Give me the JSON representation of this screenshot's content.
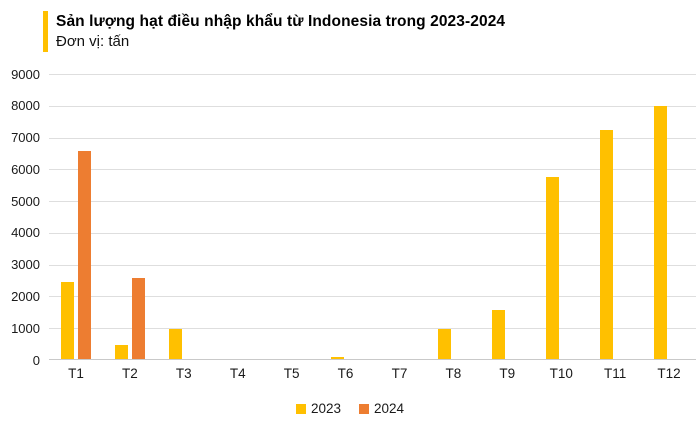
{
  "header": {
    "title": "Sản lượng hạt điều nhập khẩu từ Indonesia trong 2023-2024",
    "subtitle": "Đơn vị: tấn"
  },
  "colors": {
    "series_2023": "#FFC000",
    "series_2024": "#ED7D31",
    "title_accent": "#FFC000",
    "gridline": "#DEDEDE",
    "axis_line": "#C9C9C9",
    "label_text": "#1A1A1A"
  },
  "chart_data": {
    "type": "bar",
    "title": "Sản lượng hạt điều nhập khẩu từ Indonesia trong 2023-2024",
    "subtitle": "Đơn vị: tấn",
    "unit": "tấn",
    "categories": [
      "T1",
      "T2",
      "T3",
      "T4",
      "T5",
      "T6",
      "T7",
      "T8",
      "T9",
      "T10",
      "T11",
      "T12"
    ],
    "series": [
      {
        "name": "2023",
        "color": "#FFC000",
        "values": [
          2420,
          430,
          960,
          0,
          0,
          50,
          0,
          950,
          1550,
          5740,
          7200,
          7950
        ]
      },
      {
        "name": "2024",
        "color": "#ED7D31",
        "values": [
          6560,
          2550,
          null,
          null,
          null,
          null,
          null,
          null,
          null,
          null,
          null,
          null
        ]
      }
    ],
    "ylim": [
      0,
      9000
    ],
    "ytick_step": 1000,
    "yticks": [
      0,
      1000,
      2000,
      3000,
      4000,
      5000,
      6000,
      7000,
      8000,
      9000
    ],
    "grid": true,
    "legend_position": "bottom"
  }
}
